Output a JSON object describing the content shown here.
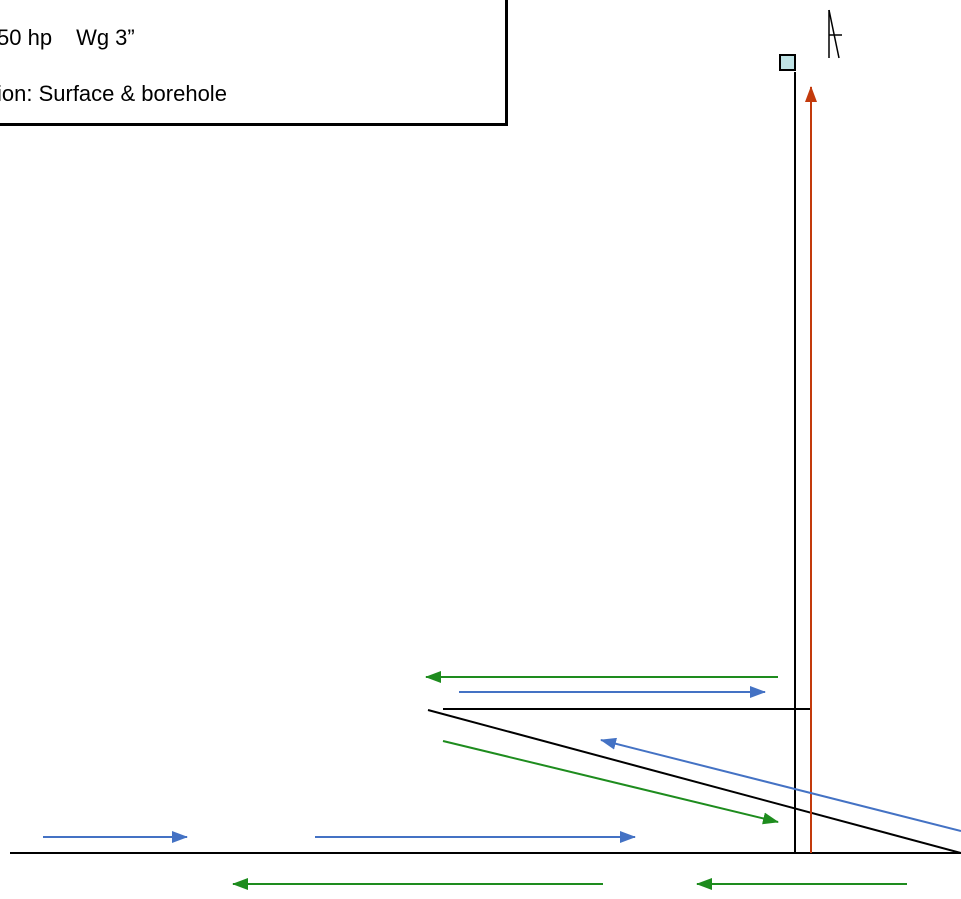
{
  "info_box": {
    "line1_part1": "50 hp",
    "line1_part2": "Wg 3”",
    "line2": "ion: Surface & borehole"
  },
  "colors": {
    "fresh_air": "#4472C4",
    "return_air": "#1E8C1E",
    "exhaust": "#C33A0C",
    "fan": "#BFE3E6",
    "structure": "#000000"
  },
  "icons": {
    "fan": "fan-icon",
    "compass": "north-arrow-icon"
  }
}
